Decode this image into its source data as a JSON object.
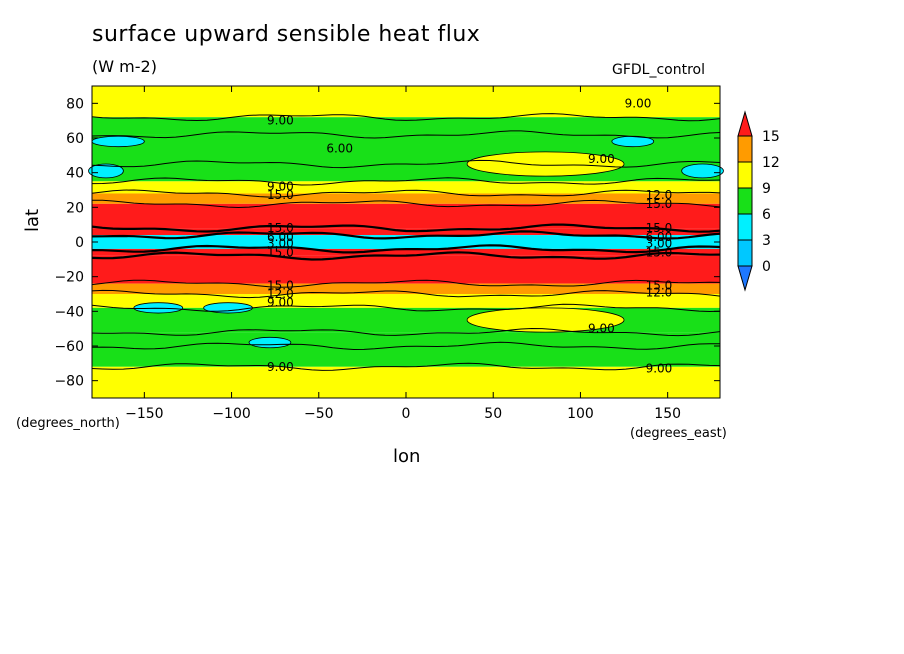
{
  "title": "surface upward sensible heat flux",
  "units": "(W m-2)",
  "source": "GFDL_control",
  "colors": {
    "below0": "#1e78ff",
    "c0_3": "#00c8ff",
    "c3_6": "#00f0ff",
    "c6_9": "#18e018",
    "c9_12": "#ffff00",
    "c12_15": "#ff9b00",
    "above15": "#ff1b1b",
    "contour": "#000000"
  },
  "chart_data": {
    "type": "heatmap",
    "title": "surface upward sensible heat flux",
    "xlabel": "lon",
    "ylabel": "lat",
    "x_units": "(degrees_east)",
    "y_units": "(degrees_north)",
    "xlim": [
      -180,
      180
    ],
    "ylim": [
      -90,
      90
    ],
    "xticks": [
      -150,
      -100,
      -50,
      0,
      50,
      100,
      150
    ],
    "yticks": [
      -80,
      -60,
      -40,
      -20,
      0,
      20,
      40,
      60,
      80
    ],
    "colorbar": {
      "levels": [
        0,
        3,
        6,
        9,
        12,
        15
      ],
      "tick_labels": [
        "0",
        "3",
        "6",
        "9",
        "12",
        "15"
      ],
      "extend": "both"
    },
    "zonal_bands": [
      {
        "lat_from": 72,
        "lat_to": 90,
        "value": 9.5
      },
      {
        "lat_from": 62,
        "lat_to": 72,
        "value": 7
      },
      {
        "lat_from": 45,
        "lat_to": 62,
        "value": 6.5
      },
      {
        "lat_from": 35,
        "lat_to": 45,
        "value": 7
      },
      {
        "lat_from": 28,
        "lat_to": 35,
        "value": 10
      },
      {
        "lat_from": 22,
        "lat_to": 28,
        "value": 13
      },
      {
        "lat_from": 8,
        "lat_to": 22,
        "value": 18
      },
      {
        "lat_from": 4,
        "lat_to": 8,
        "value": 15
      },
      {
        "lat_from": -4,
        "lat_to": 4,
        "value": 3.5
      },
      {
        "lat_from": -8,
        "lat_to": -4,
        "value": 15
      },
      {
        "lat_from": -24,
        "lat_to": -8,
        "value": 18
      },
      {
        "lat_from": -30,
        "lat_to": -24,
        "value": 13
      },
      {
        "lat_from": -38,
        "lat_to": -30,
        "value": 10
      },
      {
        "lat_from": -52,
        "lat_to": -38,
        "value": 7
      },
      {
        "lat_from": -60,
        "lat_to": -52,
        "value": 6.5
      },
      {
        "lat_from": -72,
        "lat_to": -60,
        "value": 7
      },
      {
        "lat_from": -90,
        "lat_to": -72,
        "value": 9.5
      }
    ],
    "features": [
      {
        "type": "low",
        "lon": -172,
        "lat": 41,
        "rx": 10,
        "ry": 4,
        "value": 4.5
      },
      {
        "type": "low",
        "lon": 170,
        "lat": 41,
        "rx": 12,
        "ry": 4,
        "value": 4.5
      },
      {
        "type": "low",
        "lon": -165,
        "lat": 58,
        "rx": 15,
        "ry": 3,
        "value": 4.5
      },
      {
        "type": "low",
        "lon": 130,
        "lat": 58,
        "rx": 12,
        "ry": 3,
        "value": 4.5
      },
      {
        "type": "low",
        "lon": -142,
        "lat": -38,
        "rx": 14,
        "ry": 3,
        "value": 4.5
      },
      {
        "type": "low",
        "lon": -102,
        "lat": -38,
        "rx": 14,
        "ry": 3,
        "value": 4.5
      },
      {
        "type": "low",
        "lon": -78,
        "lat": -58,
        "rx": 12,
        "ry": 3,
        "value": 4.5
      },
      {
        "type": "high",
        "lon": 80,
        "lat": 45,
        "rx": 45,
        "ry": 7,
        "value": 10.5
      },
      {
        "type": "high",
        "lon": 80,
        "lat": -45,
        "rx": 45,
        "ry": 7,
        "value": 10.5
      }
    ],
    "contour_labels": [
      {
        "text": "9.00",
        "lon": -72,
        "lat": 70
      },
      {
        "text": "9.00",
        "lon": 133,
        "lat": 80
      },
      {
        "text": "6.00",
        "lon": -38,
        "lat": 54
      },
      {
        "text": "9.00",
        "lon": 112,
        "lat": 48
      },
      {
        "text": "9.00",
        "lon": -72,
        "lat": 32
      },
      {
        "text": "15.0",
        "lon": -72,
        "lat": 27
      },
      {
        "text": "12.0",
        "lon": 145,
        "lat": 27
      },
      {
        "text": "15.0",
        "lon": 145,
        "lat": 22
      },
      {
        "text": "15.0",
        "lon": -72,
        "lat": 8
      },
      {
        "text": "15.0",
        "lon": 145,
        "lat": 8
      },
      {
        "text": "6.00",
        "lon": -72,
        "lat": 3
      },
      {
        "text": "6.00",
        "lon": 145,
        "lat": 3
      },
      {
        "text": "3.00",
        "lon": -72,
        "lat": -1
      },
      {
        "text": "3.00",
        "lon": 145,
        "lat": -1
      },
      {
        "text": "15.0",
        "lon": -72,
        "lat": -6
      },
      {
        "text": "15.0",
        "lon": 145,
        "lat": -6
      },
      {
        "text": "15.0",
        "lon": -72,
        "lat": -25
      },
      {
        "text": "12.0",
        "lon": -72,
        "lat": -30
      },
      {
        "text": "9.00",
        "lon": -72,
        "lat": -35
      },
      {
        "text": "15.0",
        "lon": 145,
        "lat": -25
      },
      {
        "text": "12.0",
        "lon": 145,
        "lat": -29
      },
      {
        "text": "9.00",
        "lon": 112,
        "lat": -50
      },
      {
        "text": "9.00",
        "lon": -72,
        "lat": -72
      },
      {
        "text": "9.00",
        "lon": 145,
        "lat": -73
      }
    ]
  }
}
